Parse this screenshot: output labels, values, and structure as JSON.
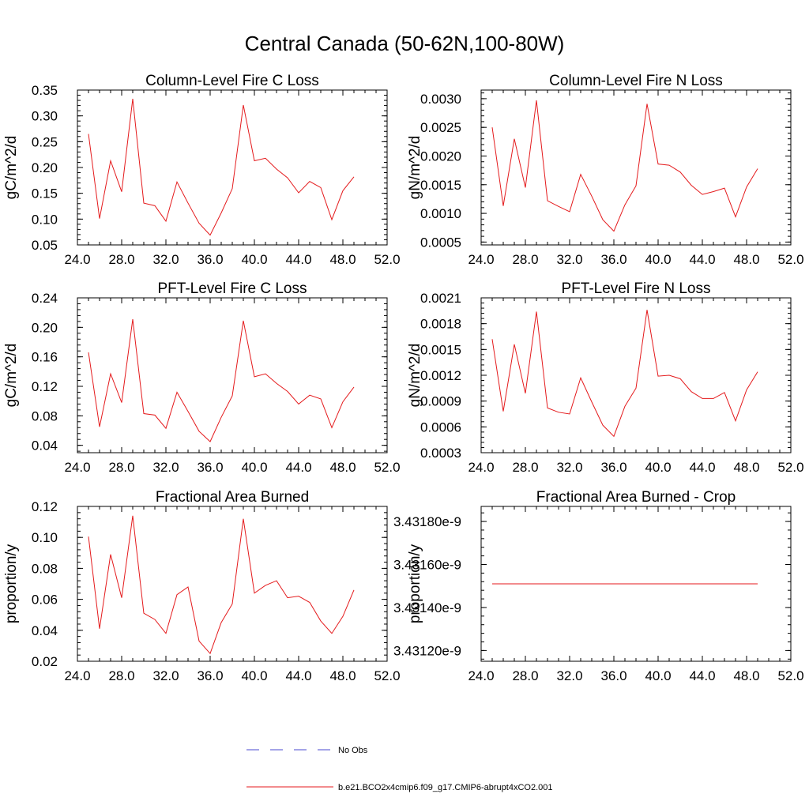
{
  "chart_data": {
    "title": "Central Canada (50-62N,100-80W)",
    "type": "line",
    "panels": [
      {
        "title": "Column-Level Fire C Loss",
        "ylabel": "gC/m^2/d",
        "xlim": [
          24,
          52
        ],
        "x_ticks": [
          "24.0",
          "28.0",
          "32.0",
          "36.0",
          "40.0",
          "44.0",
          "48.0",
          "52.0"
        ],
        "ylim": [
          0.05,
          0.35
        ],
        "y_ticks": [
          "0.05",
          "0.10",
          "0.15",
          "0.20",
          "0.25",
          "0.30",
          "0.35"
        ],
        "x": [
          25,
          26,
          27,
          28,
          29,
          30,
          31,
          32,
          33,
          34,
          35,
          36,
          37,
          38,
          39,
          40,
          41,
          42,
          43,
          44,
          45,
          46,
          47,
          48,
          49
        ],
        "values": [
          0.265,
          0.101,
          0.213,
          0.153,
          0.333,
          0.131,
          0.126,
          0.096,
          0.172,
          0.131,
          0.092,
          0.069,
          0.112,
          0.159,
          0.321,
          0.213,
          0.218,
          0.197,
          0.18,
          0.151,
          0.173,
          0.161,
          0.099,
          0.155,
          0.182
        ]
      },
      {
        "title": "Column-Level Fire N Loss",
        "ylabel": "gN/m^2/d",
        "xlim": [
          24,
          52
        ],
        "x_ticks": [
          "24.0",
          "28.0",
          "32.0",
          "36.0",
          "40.0",
          "44.0",
          "48.0",
          "52.0"
        ],
        "ylim": [
          0.00045,
          0.00315
        ],
        "y_ticks": [
          "0.0005",
          "0.0010",
          "0.0015",
          "0.0020",
          "0.0025",
          "0.0030"
        ],
        "x": [
          25,
          26,
          27,
          28,
          29,
          30,
          31,
          32,
          33,
          34,
          35,
          36,
          37,
          38,
          39,
          40,
          41,
          42,
          43,
          44,
          45,
          46,
          47,
          48,
          49
        ],
        "values": [
          0.0025,
          0.00113,
          0.0023,
          0.00145,
          0.00297,
          0.00122,
          0.00112,
          0.00103,
          0.00168,
          0.0013,
          0.00089,
          0.00069,
          0.00115,
          0.00148,
          0.00291,
          0.00186,
          0.00184,
          0.00172,
          0.00149,
          0.00133,
          0.00138,
          0.00144,
          0.00094,
          0.00146,
          0.00178
        ]
      },
      {
        "title": "PFT-Level Fire C Loss",
        "ylabel": "gC/m^2/d",
        "xlim": [
          24,
          52
        ],
        "x_ticks": [
          "24.0",
          "28.0",
          "32.0",
          "36.0",
          "40.0",
          "44.0",
          "48.0",
          "52.0"
        ],
        "ylim": [
          0.03,
          0.24
        ],
        "y_ticks": [
          "0.04",
          "0.08",
          "0.12",
          "0.16",
          "0.20",
          "0.24"
        ],
        "x": [
          25,
          26,
          27,
          28,
          29,
          30,
          31,
          32,
          33,
          34,
          35,
          36,
          37,
          38,
          39,
          40,
          41,
          42,
          43,
          44,
          45,
          46,
          47,
          48,
          49
        ],
        "values": [
          0.166,
          0.065,
          0.137,
          0.098,
          0.211,
          0.083,
          0.081,
          0.063,
          0.112,
          0.086,
          0.059,
          0.045,
          0.078,
          0.107,
          0.209,
          0.133,
          0.137,
          0.124,
          0.113,
          0.096,
          0.108,
          0.103,
          0.064,
          0.099,
          0.119
        ]
      },
      {
        "title": "PFT-Level Fire N Loss",
        "ylabel": "gN/m^2/d",
        "xlim": [
          24,
          52
        ],
        "x_ticks": [
          "24.0",
          "28.0",
          "32.0",
          "36.0",
          "40.0",
          "44.0",
          "48.0",
          "52.0"
        ],
        "ylim": [
          0.0003,
          0.0021
        ],
        "y_ticks": [
          "0.0003",
          "0.0006",
          "0.0009",
          "0.0012",
          "0.0015",
          "0.0018",
          "0.0021"
        ],
        "x": [
          25,
          26,
          27,
          28,
          29,
          30,
          31,
          32,
          33,
          34,
          35,
          36,
          37,
          38,
          39,
          40,
          41,
          42,
          43,
          44,
          45,
          46,
          47,
          48,
          49
        ],
        "values": [
          0.00162,
          0.00078,
          0.00156,
          0.00099,
          0.00194,
          0.00082,
          0.00077,
          0.00075,
          0.00117,
          0.00089,
          0.00062,
          0.00049,
          0.00084,
          0.00105,
          0.00196,
          0.00119,
          0.0012,
          0.00116,
          0.00101,
          0.00093,
          0.00093,
          0.001,
          0.00067,
          0.00103,
          0.00124
        ]
      },
      {
        "title": "Fractional Area Burned",
        "ylabel": "proportion/y",
        "xlim": [
          24,
          52
        ],
        "x_ticks": [
          "24.0",
          "28.0",
          "32.0",
          "36.0",
          "40.0",
          "44.0",
          "48.0",
          "52.0"
        ],
        "ylim": [
          0.02,
          0.12
        ],
        "y_ticks": [
          "0.02",
          "0.04",
          "0.06",
          "0.08",
          "0.10",
          "0.12"
        ],
        "x": [
          25,
          26,
          27,
          28,
          29,
          30,
          31,
          32,
          33,
          34,
          35,
          36,
          37,
          38,
          39,
          40,
          41,
          42,
          43,
          44,
          45,
          46,
          47,
          48,
          49
        ],
        "values": [
          0.1005,
          0.041,
          0.089,
          0.061,
          0.114,
          0.051,
          0.047,
          0.038,
          0.063,
          0.068,
          0.033,
          0.025,
          0.045,
          0.057,
          0.112,
          0.064,
          0.069,
          0.072,
          0.061,
          0.062,
          0.058,
          0.046,
          0.038,
          0.049,
          0.066
        ]
      },
      {
        "title": "Fractional Area Burned - Crop",
        "ylabel": "proportion/y",
        "xlim": [
          24,
          52
        ],
        "x_ticks": [
          "24.0",
          "28.0",
          "32.0",
          "36.0",
          "40.0",
          "44.0",
          "48.0",
          "52.0"
        ],
        "ylim": [
          3.43115e-09,
          3.43187e-09
        ],
        "y_ticks": [
          "3.43120e-9",
          "3.43140e-9",
          "3.43160e-9",
          "3.43180e-9"
        ],
        "x": [
          25,
          49
        ],
        "values": [
          3.43151e-09,
          3.43151e-09
        ]
      }
    ],
    "legend": [
      {
        "label": "No Obs",
        "color": "#4a4ad0",
        "style": "dashed"
      },
      {
        "label": "b.e21.BCO2x4cmip6.f09_g17.CMIP6-abrupt4xCO2.001",
        "color": "#e41a1c",
        "style": "solid"
      }
    ]
  }
}
